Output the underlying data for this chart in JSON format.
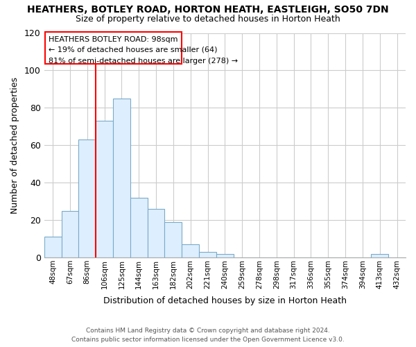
{
  "title": "HEATHERS, BOTLEY ROAD, HORTON HEATH, EASTLEIGH, SO50 7DN",
  "subtitle": "Size of property relative to detached houses in Horton Heath",
  "xlabel": "Distribution of detached houses by size in Horton Heath",
  "ylabel": "Number of detached properties",
  "bar_color": "#ddeeff",
  "bar_edge_color": "#7aaac8",
  "categories": [
    "48sqm",
    "67sqm",
    "86sqm",
    "106sqm",
    "125sqm",
    "144sqm",
    "163sqm",
    "182sqm",
    "202sqm",
    "221sqm",
    "240sqm",
    "259sqm",
    "278sqm",
    "298sqm",
    "317sqm",
    "336sqm",
    "355sqm",
    "374sqm",
    "394sqm",
    "413sqm",
    "432sqm"
  ],
  "values": [
    11,
    25,
    63,
    73,
    85,
    32,
    26,
    19,
    7,
    3,
    2,
    0,
    0,
    0,
    0,
    0,
    0,
    0,
    0,
    2,
    0
  ],
  "ylim": [
    0,
    120
  ],
  "yticks": [
    0,
    20,
    40,
    60,
    80,
    100,
    120
  ],
  "annotation_title": "HEATHERS BOTLEY ROAD: 98sqm",
  "annotation_line1": "← 19% of detached houses are smaller (64)",
  "annotation_line2": "81% of semi-detached houses are larger (278) →",
  "footer_line1": "Contains HM Land Registry data © Crown copyright and database right 2024.",
  "footer_line2": "Contains public sector information licensed under the Open Government Licence v3.0.",
  "background_color": "#ffffff",
  "grid_color": "#cccccc",
  "vline_index": 3
}
